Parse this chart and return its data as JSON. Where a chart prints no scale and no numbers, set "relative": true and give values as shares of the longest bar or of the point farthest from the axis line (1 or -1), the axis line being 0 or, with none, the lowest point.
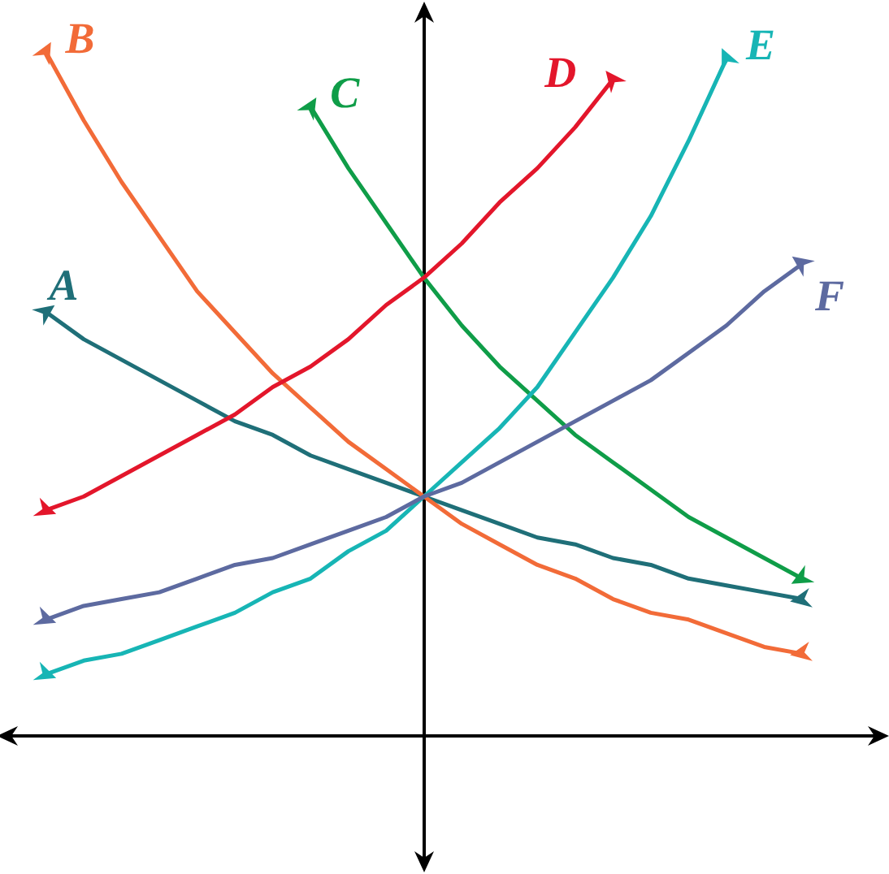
{
  "chart_data": {
    "type": "line",
    "relative": true,
    "line_style": "solid",
    "grid": false,
    "legend": false,
    "categories": [
      null,
      null,
      null,
      null,
      null,
      null,
      null,
      null,
      null,
      null,
      null,
      null,
      null,
      null,
      null,
      null,
      null,
      null,
      null,
      null,
      null
    ],
    "series": [
      {
        "name": "A",
        "color": "#1f6f78",
        "values": [
          0.62,
          0.58,
          0.55,
          0.52,
          0.49,
          0.46,
          0.44,
          0.41,
          0.39,
          0.37,
          0.35,
          0.33,
          0.31,
          0.29,
          0.28,
          0.26,
          0.25,
          0.23,
          0.22,
          0.21,
          0.2
        ]
      },
      {
        "name": "B",
        "color": "#f26b38",
        "values": [
          1.0,
          0.9,
          0.81,
          0.73,
          0.65,
          0.59,
          0.53,
          0.48,
          0.43,
          0.39,
          0.35,
          0.31,
          0.28,
          0.25,
          0.23,
          0.2,
          0.18,
          0.17,
          0.15,
          0.13,
          0.12
        ]
      },
      {
        "name": "C",
        "color": "#0f9d48",
        "values": [
          null,
          null,
          null,
          null,
          null,
          null,
          null,
          0.92,
          0.83,
          0.75,
          0.67,
          0.6,
          0.54,
          0.49,
          0.44,
          0.4,
          0.36,
          0.32,
          0.29,
          0.26,
          0.23
        ]
      },
      {
        "name": "D",
        "color": "#e3162b",
        "values": [
          0.33,
          0.35,
          0.38,
          0.41,
          0.44,
          0.47,
          0.51,
          0.54,
          0.58,
          0.63,
          0.67,
          0.72,
          0.78,
          0.83,
          0.89,
          0.96,
          null,
          null,
          null,
          null,
          null
        ]
      },
      {
        "name": "E",
        "color": "#17b5b5",
        "values": [
          0.09,
          0.11,
          0.12,
          0.14,
          0.16,
          0.18,
          0.21,
          0.23,
          0.27,
          0.3,
          0.35,
          0.4,
          0.45,
          0.51,
          0.59,
          0.67,
          0.76,
          0.87,
          0.99,
          null,
          null
        ]
      },
      {
        "name": "F",
        "color": "#5d6aa0",
        "values": [
          0.17,
          0.19,
          0.2,
          0.21,
          0.23,
          0.25,
          0.26,
          0.28,
          0.3,
          0.32,
          0.35,
          0.37,
          0.4,
          0.43,
          0.46,
          0.49,
          0.52,
          0.56,
          0.6,
          0.65,
          0.69
        ]
      }
    ]
  }
}
